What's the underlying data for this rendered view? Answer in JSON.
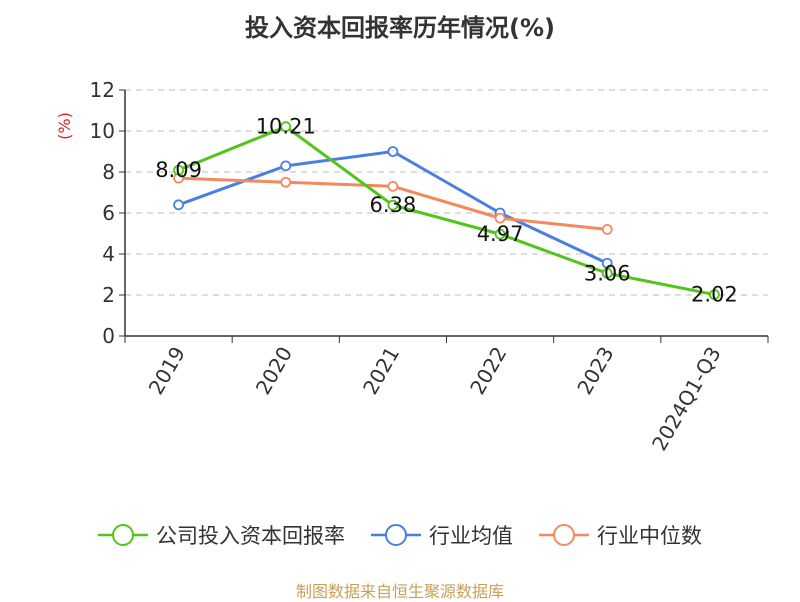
{
  "chart_data": {
    "type": "line",
    "title": "投入资本回报率历年情况(%)",
    "ylabel": "(%)",
    "ylim": [
      0,
      12
    ],
    "yticks": [
      0,
      2,
      4,
      6,
      8,
      10,
      12
    ],
    "grid": true,
    "legend_position": "bottom",
    "categories": [
      "2019",
      "2020",
      "2021",
      "2022",
      "2023",
      "2024Q1-Q3"
    ],
    "series": [
      {
        "name": "公司投入资本回报率",
        "color": "#52c41a",
        "values": [
          8.09,
          10.21,
          6.38,
          4.97,
          3.06,
          2.02
        ],
        "labels": [
          "8.09",
          "10.21",
          "6.38",
          "4.97",
          "3.06",
          "2.02"
        ]
      },
      {
        "name": "行业均值",
        "color": "#4a7fe0",
        "values": [
          6.4,
          8.3,
          9.0,
          6.0,
          3.55,
          null
        ]
      },
      {
        "name": "行业中位数",
        "color": "#f4895f",
        "values": [
          7.7,
          7.5,
          7.3,
          5.75,
          5.2,
          null
        ]
      }
    ]
  },
  "source": "制图数据来自恒生聚源数据库"
}
